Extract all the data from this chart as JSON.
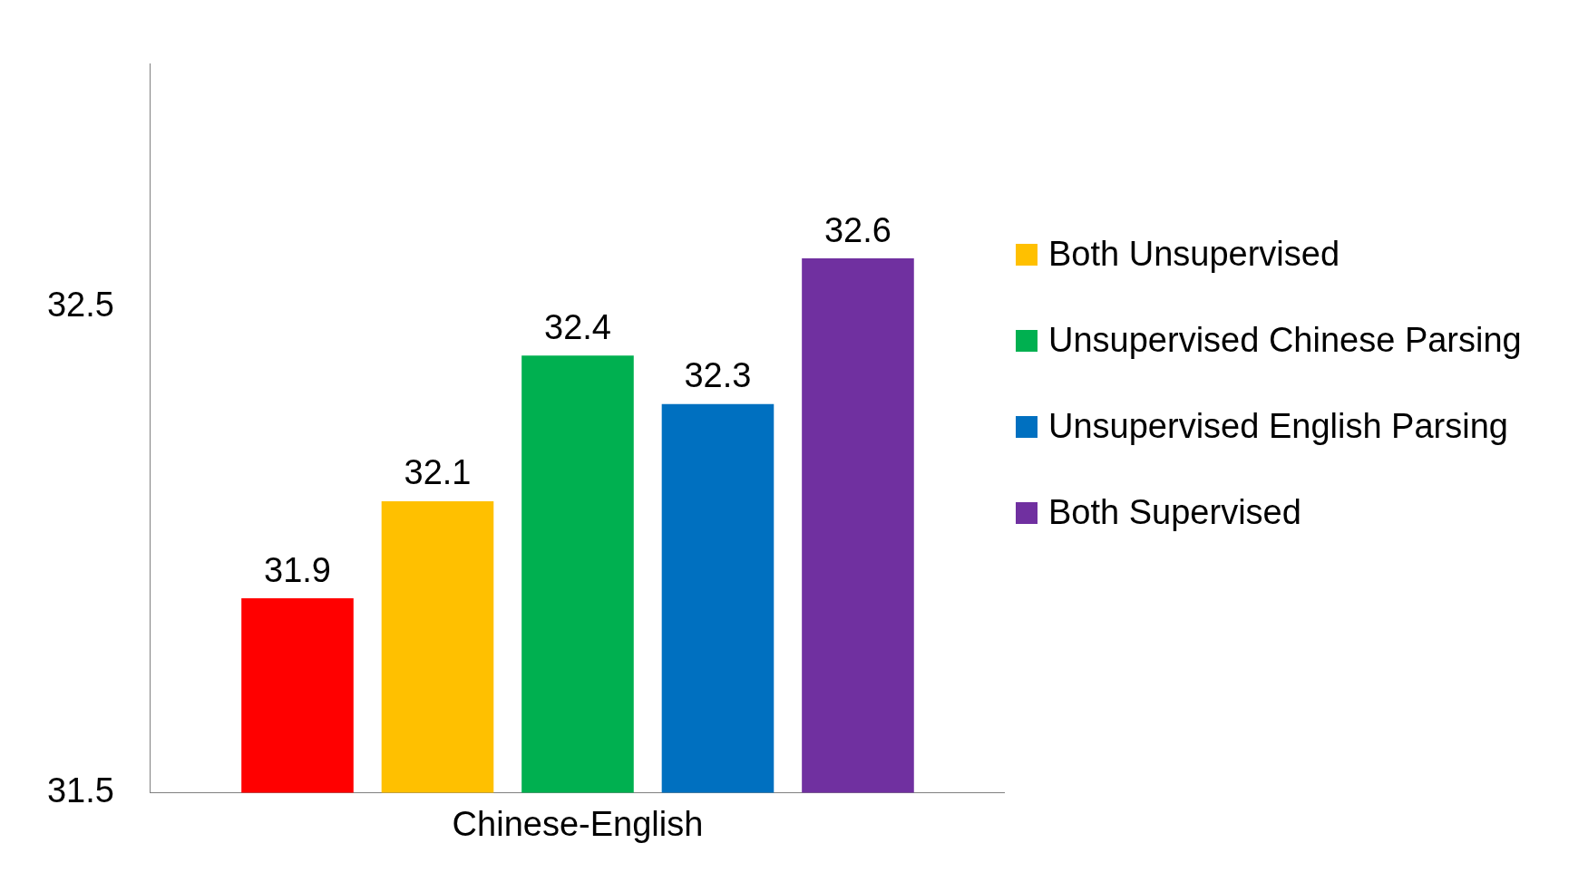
{
  "chart_data": {
    "type": "bar",
    "categories": [
      "Chinese-English"
    ],
    "series": [
      {
        "color": "#ff0000",
        "values": [
          31.9
        ]
      },
      {
        "name": "Both Unsupervised",
        "color": "#ffc000",
        "values": [
          32.1
        ]
      },
      {
        "name": "Unsupervised Chinese Parsing",
        "color": "#00b050",
        "values": [
          32.4
        ]
      },
      {
        "name": "Unsupervised English Parsing",
        "color": "#0070c0",
        "values": [
          32.3
        ]
      },
      {
        "name": "Both Supervised",
        "color": "#7030a0",
        "values": [
          32.6
        ]
      }
    ],
    "ylim": [
      31.5,
      33
    ],
    "yticks": [
      31.5,
      32.5
    ],
    "grid": false,
    "legend": "right",
    "data_labels": true
  }
}
